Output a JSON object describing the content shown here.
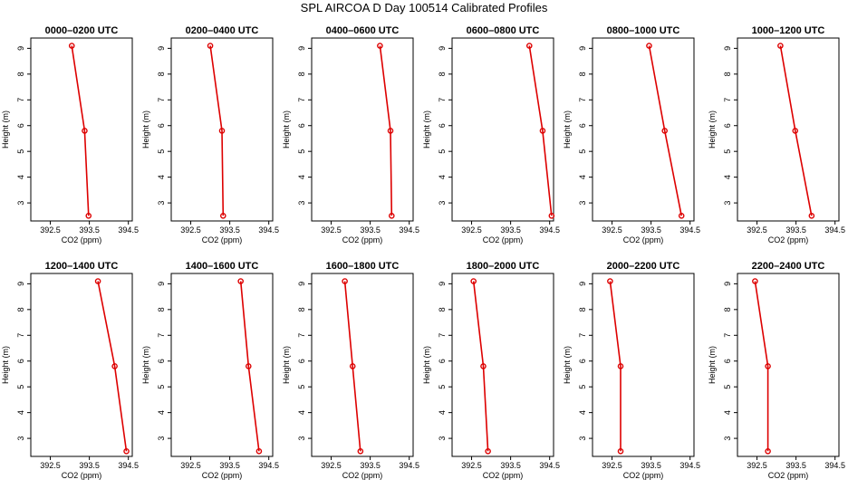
{
  "title": "SPL AIRCOA D  Day 100514  Calibrated Profiles",
  "colors": {
    "series": "#dd0000",
    "axis": "#000000",
    "background": "#ffffff"
  },
  "chart_data": {
    "type": "line",
    "title": "SPL AIRCOA D  Day 100514  Calibrated Profiles",
    "xlabel": "CO2 (ppm)",
    "ylabel": "Height (m)",
    "xlim": [
      392.0,
      394.6
    ],
    "ylim": [
      2.3,
      9.4
    ],
    "xticks": [
      392.5,
      393.5,
      394.5
    ],
    "xtick_labels": [
      "392.5",
      "393.5",
      "394.5"
    ],
    "yticks": [
      3,
      4,
      5,
      6,
      7,
      8,
      9
    ],
    "ytick_labels": [
      "3",
      "4",
      "5",
      "6",
      "7",
      "8",
      "9"
    ],
    "panels": [
      {
        "title": "0000–0200 UTC",
        "heights": [
          9.1,
          5.8,
          2.5
        ],
        "co2": [
          393.05,
          393.38,
          393.48
        ]
      },
      {
        "title": "0200–0400 UTC",
        "heights": [
          9.1,
          5.8,
          2.5
        ],
        "co2": [
          393.0,
          393.3,
          393.33
        ]
      },
      {
        "title": "0400–0600 UTC",
        "heights": [
          9.1,
          5.8,
          2.5
        ],
        "co2": [
          393.75,
          394.02,
          394.05
        ]
      },
      {
        "title": "0600–0800 UTC",
        "heights": [
          9.1,
          5.8,
          2.5
        ],
        "co2": [
          393.98,
          394.32,
          394.55
        ]
      },
      {
        "title": "0800–1000 UTC",
        "heights": [
          9.1,
          5.8,
          2.5
        ],
        "co2": [
          393.45,
          393.85,
          394.28
        ]
      },
      {
        "title": "1000–1200 UTC",
        "heights": [
          9.1,
          5.8,
          2.5
        ],
        "co2": [
          393.1,
          393.48,
          393.9
        ]
      },
      {
        "title": "1200–1400 UTC",
        "heights": [
          9.1,
          5.8,
          2.5
        ],
        "co2": [
          393.72,
          394.15,
          394.45
        ]
      },
      {
        "title": "1400–1600 UTC",
        "heights": [
          9.1,
          5.8,
          2.5
        ],
        "co2": [
          393.78,
          393.98,
          394.25
        ]
      },
      {
        "title": "1600–1800 UTC",
        "heights": [
          9.1,
          5.8,
          2.5
        ],
        "co2": [
          392.85,
          393.05,
          393.25
        ]
      },
      {
        "title": "1800–2000 UTC",
        "heights": [
          9.1,
          5.8,
          2.5
        ],
        "co2": [
          392.55,
          392.8,
          392.92
        ]
      },
      {
        "title": "2000–2200 UTC",
        "heights": [
          9.1,
          5.8,
          2.5
        ],
        "co2": [
          392.45,
          392.72,
          392.72
        ]
      },
      {
        "title": "2200–2400 UTC",
        "heights": [
          9.1,
          5.8,
          2.5
        ],
        "co2": [
          392.45,
          392.78,
          392.78
        ]
      }
    ]
  }
}
